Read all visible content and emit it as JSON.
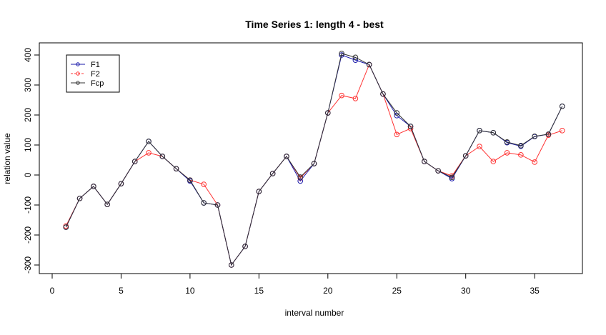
{
  "chart_data": {
    "type": "line",
    "title": "Time Series 1: length 4 - best",
    "xlabel": "interval number",
    "ylabel": "relation value",
    "xlim": [
      0,
      37.5
    ],
    "ylim": [
      -310,
      410
    ],
    "xticks": [
      0,
      5,
      10,
      15,
      20,
      25,
      30,
      35
    ],
    "yticks": [
      -300,
      -200,
      -100,
      0,
      100,
      200,
      300,
      400
    ],
    "legend_position": "top-left",
    "x": [
      1,
      2,
      3,
      4,
      5,
      6,
      7,
      8,
      9,
      10,
      11,
      12,
      13,
      14,
      15,
      16,
      17,
      18,
      19,
      20,
      21,
      22,
      23,
      24,
      25,
      26,
      27,
      28,
      29,
      30,
      31,
      32,
      33,
      34,
      35,
      36,
      37
    ],
    "series": [
      {
        "name": "F2",
        "color": "#ff3333",
        "dashed": true,
        "values": [
          -170,
          -78,
          -38,
          -98,
          -29,
          45,
          74,
          62,
          21,
          -17,
          -31,
          -100,
          -300,
          -238,
          -55,
          5,
          62,
          -10,
          38,
          207,
          265,
          255,
          368,
          270,
          135,
          155,
          45,
          14,
          -3,
          64,
          95,
          45,
          74,
          67,
          43,
          133,
          148
        ]
      },
      {
        "name": "F1",
        "color": "#1a1aaa",
        "dashed": false,
        "values": [
          -174,
          -78,
          -38,
          -98,
          -29,
          45,
          112,
          62,
          21,
          -20,
          -93,
          -100,
          -300,
          -238,
          -55,
          5,
          62,
          -20,
          38,
          207,
          400,
          383,
          368,
          270,
          198,
          162,
          45,
          14,
          -12,
          64,
          148,
          141,
          108,
          96,
          128,
          136,
          229
        ]
      },
      {
        "name": "Fcp",
        "color": "#333333",
        "dashed": false,
        "values": [
          -174,
          -78,
          -38,
          -98,
          -29,
          45,
          112,
          62,
          21,
          -17,
          -93,
          -100,
          -300,
          -238,
          -55,
          5,
          62,
          -7,
          38,
          207,
          405,
          392,
          368,
          270,
          207,
          162,
          45,
          14,
          -8,
          64,
          148,
          141,
          110,
          98,
          129,
          136,
          229
        ]
      }
    ],
    "legend": [
      "F1",
      "F2",
      "Fcp"
    ]
  }
}
